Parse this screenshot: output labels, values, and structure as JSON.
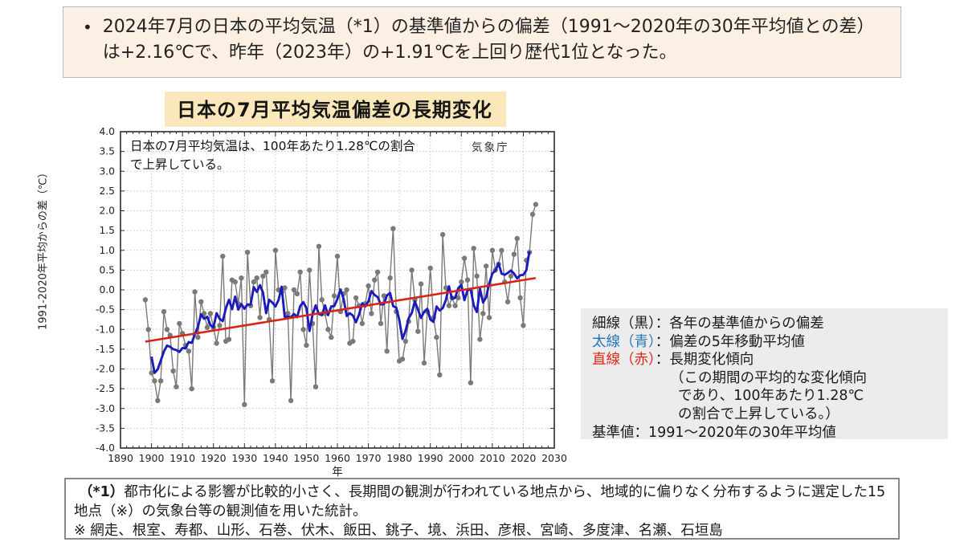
{
  "page_background": "#ffffff",
  "summary_banner": {
    "bullet": "•",
    "text": "2024年7月の日本の平均気温（*1）の基準値からの偏差（1991～2020年の30年平均値との差）は+2.16℃で、昨年（2023年）の+1.91℃を上回り歴代1位となった。",
    "background": "#fcefe3"
  },
  "chart_title": "日本の7月平均気温偏差の長期変化",
  "chart": {
    "annotation_line1": "日本の7月平均気温は、100年あたり1.28℃の割合",
    "annotation_line2": "で上昇している。",
    "source_label": "気象庁",
    "title_highlight": "#fbe8ba"
  },
  "chart_data": {
    "type": "line",
    "title": "日本の7月平均気温偏差の長期変化",
    "xlabel": "年",
    "ylabel": "1991-2020年平均からの差（℃）",
    "xlim": [
      1890,
      2030
    ],
    "ylim": [
      -4.0,
      4.0
    ],
    "x_tick_step": 10,
    "y_tick_step": 0.5,
    "grid": true,
    "legend_position": "external-right-box",
    "series": [
      {
        "name": "各年の基準値からの偏差（細線・黒）",
        "style": "thin-line-with-markers",
        "color": "#7a7a7a",
        "start_year": 1898,
        "values": [
          -0.25,
          -1.0,
          -2.1,
          -2.3,
          -2.8,
          -2.3,
          -0.55,
          -1.0,
          -1.15,
          -2.05,
          -2.45,
          -0.85,
          -1.1,
          -1.4,
          -1.55,
          -2.5,
          -0.05,
          -1.2,
          -0.3,
          -0.6,
          -0.95,
          -0.6,
          -0.95,
          -1.35,
          -0.9,
          0.85,
          -1.3,
          -1.25,
          0.25,
          0.2,
          -0.35,
          0.3,
          -2.9,
          0.95,
          -0.4,
          0.2,
          0.3,
          -0.7,
          0.35,
          0.45,
          -0.75,
          -2.3,
          1.0,
          0.0,
          -0.05,
          0.05,
          -0.6,
          -2.8,
          0.0,
          -0.1,
          0.45,
          -1.0,
          -1.4,
          0.5,
          -0.85,
          -2.45,
          1.1,
          -0.25,
          -0.6,
          -1.0,
          -1.2,
          -0.15,
          0.85,
          -0.55,
          -0.1,
          0.0,
          -1.35,
          -1.3,
          -0.2,
          -0.4,
          -0.85,
          -0.35,
          0.1,
          -0.6,
          0.25,
          0.45,
          -0.85,
          -0.15,
          -1.55,
          0.3,
          1.55,
          -0.55,
          -1.8,
          -1.75,
          -1.3,
          -0.8,
          0.5,
          -0.25,
          -1.05,
          0.15,
          -1.85,
          -0.55,
          0.55,
          -0.7,
          -1.2,
          -2.15,
          1.4,
          0.05,
          -0.4,
          -0.2,
          -0.4,
          -0.2,
          0.2,
          0.8,
          0.25,
          -2.35,
          1.05,
          0.35,
          -1.25,
          -0.6,
          0.6,
          -0.7,
          1.0,
          0.5,
          0.65,
          1.0,
          0.2,
          -0.3,
          0.35,
          0.9,
          1.3,
          -0.2,
          -0.9,
          0.75,
          0.95,
          1.91,
          2.16
        ]
      },
      {
        "name": "偏差の5年移動平均値（太線・青）",
        "style": "thick-line",
        "color": "#1a1abd",
        "derived": "5-year-centered-moving-average-of-series-0"
      },
      {
        "name": "長期変化傾向（直線・赤）",
        "style": "straight-trend-line",
        "color": "#d62418",
        "trend": {
          "x": [
            1898,
            2024
          ],
          "values": [
            -1.31,
            0.3
          ],
          "rate_per_100yr": 1.28
        }
      }
    ]
  },
  "legend_box": {
    "background": "#ececec",
    "blue": "#2277bb",
    "red": "#e02418",
    "black": "#1a1a1a",
    "lines": [
      {
        "term": "細線（黒）",
        "term_color": "#1a1a1a",
        "rest": "：各年の基準値からの偏差",
        "indent": 0
      },
      {
        "term": "太線（青）",
        "term_color": "#2277bb",
        "rest": "：偏差の5年移動平均値",
        "indent": 0
      },
      {
        "term": "直線（赤）",
        "term_color": "#e02418",
        "rest": "：長期変化傾向",
        "indent": 0
      },
      {
        "rest": "（この期間の平均的な変化傾向",
        "indent": 97
      },
      {
        "rest": "であり、100年あたり1.28℃",
        "indent": 107
      },
      {
        "rest": "の割合で上昇している。）",
        "indent": 107
      },
      {
        "rest": "基準値：1991～2020年の30年平均値",
        "indent": 0
      }
    ]
  },
  "footnote": {
    "marker": "（*1）",
    "text": "都市化による影響が比較的小さく、長期間の観測が行われている地点から、地域的に偏りなく分布するように選定した15地点（※）の気象台等の観測値を用いた統計。",
    "stations": "※ 網走、根室、寿都、山形、石巻、伏木、飯田、銚子、境、浜田、彦根、宮崎、多度津、名瀬、石垣島"
  }
}
